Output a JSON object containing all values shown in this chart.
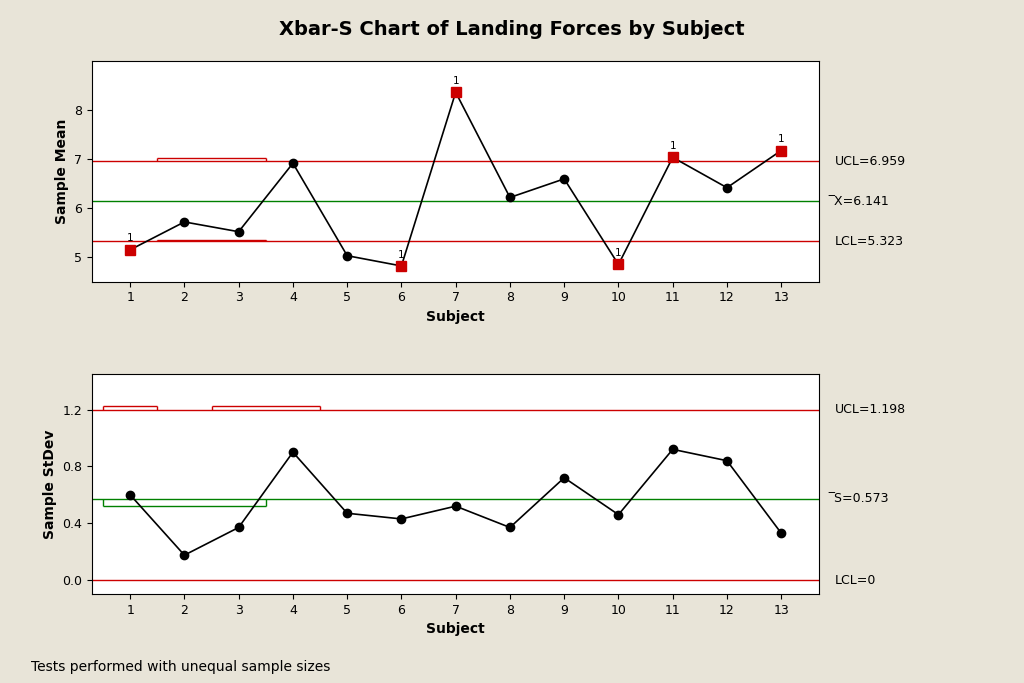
{
  "title": "Xbar-S Chart of Landing Forces by Subject",
  "background_color": "#e8e4d8",
  "plot_bg_color": "#ffffff",
  "subjects": [
    1,
    2,
    3,
    4,
    5,
    6,
    7,
    8,
    9,
    10,
    11,
    12,
    13
  ],
  "xbar_values": [
    5.15,
    5.72,
    5.52,
    6.92,
    5.03,
    4.82,
    8.37,
    6.22,
    6.6,
    4.85,
    7.04,
    6.42,
    7.18
  ],
  "xbar_ucl": 6.959,
  "xbar_cl": 6.141,
  "xbar_lcl": 5.323,
  "xbar_out_of_control": [
    1,
    6,
    7,
    10,
    11,
    13
  ],
  "xbar_ylabel": "Sample Mean",
  "xbar_xlabel": "Subject",
  "xbar_ylim": [
    4.5,
    9.0
  ],
  "xbar_yticks": [
    5.0,
    6.0,
    7.0,
    8.0
  ],
  "s_values": [
    0.6,
    0.175,
    0.37,
    0.9,
    0.47,
    0.43,
    0.52,
    0.37,
    0.72,
    0.46,
    0.92,
    0.84,
    0.33
  ],
  "s_ucl": 1.198,
  "s_cl": 0.573,
  "s_lcl": 0.0,
  "s_ylabel": "Sample StDev",
  "s_xlabel": "Subject",
  "s_ylim": [
    -0.1,
    1.45
  ],
  "s_yticks": [
    0.0,
    0.4,
    0.8,
    1.2
  ],
  "ucl_color": "#cc0000",
  "cl_color": "#008000",
  "lcl_color": "#cc0000",
  "line_color": "#000000",
  "normal_marker_color": "#000000",
  "ooc_marker_color": "#cc0000",
  "ooc_marker_shape": "s",
  "normal_marker_shape": "o",
  "right_label_color": "#000000",
  "footer_text": "Tests performed with unequal sample sizes",
  "ucl_label1": "UCL=6.959",
  "cl_label1": "̅X=6.141",
  "lcl_label1": "LCL=5.323",
  "ucl_label2": "UCL=1.198",
  "cl_label2": "̅S=0.573",
  "lcl_label2": "LCL=0"
}
